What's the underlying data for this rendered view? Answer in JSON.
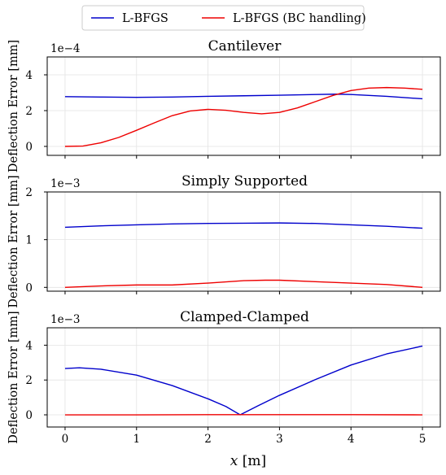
{
  "legend": {
    "items": [
      {
        "label": "L-BFGS",
        "color": "#0000cc"
      },
      {
        "label": "L-BFGS (BC handling)",
        "color": "#ee0000"
      }
    ]
  },
  "xlabel_var": "x",
  "xlabel_unit": " [m]",
  "chart_data": [
    {
      "type": "line",
      "title": "Cantilever",
      "ylabel": "Deflection Error [mm]",
      "offset_label": "1e−4",
      "xlim": [
        -0.25,
        5.25
      ],
      "ylim": [
        -0.5,
        5.0
      ],
      "x_ticks": [
        0,
        1,
        2,
        3,
        4,
        5
      ],
      "y_ticks": [
        0,
        2,
        4
      ],
      "grid": true,
      "series": [
        {
          "name": "L-BFGS",
          "color": "#0000cc",
          "x": [
            0,
            0.5,
            1.0,
            1.5,
            2.0,
            2.5,
            3.0,
            3.5,
            3.8,
            4.0,
            4.5,
            5.0
          ],
          "y": [
            2.78,
            2.76,
            2.74,
            2.76,
            2.8,
            2.83,
            2.86,
            2.9,
            2.92,
            2.9,
            2.8,
            2.66
          ]
        },
        {
          "name": "L-BFGS (BC handling)",
          "color": "#ee0000",
          "x": [
            0,
            0.25,
            0.5,
            0.75,
            1.0,
            1.25,
            1.5,
            1.75,
            2.0,
            2.25,
            2.5,
            2.75,
            3.0,
            3.25,
            3.5,
            3.75,
            4.0,
            4.25,
            4.5,
            4.75,
            5.0
          ],
          "y": [
            0.0,
            0.02,
            0.2,
            0.5,
            0.9,
            1.32,
            1.72,
            1.98,
            2.07,
            2.02,
            1.9,
            1.82,
            1.9,
            2.15,
            2.5,
            2.85,
            3.12,
            3.26,
            3.29,
            3.26,
            3.19
          ]
        }
      ]
    },
    {
      "type": "line",
      "title": "Simply Supported",
      "ylabel": "Deflection Error [mm]",
      "offset_label": "1e−3",
      "xlim": [
        -0.25,
        5.25
      ],
      "ylim": [
        -0.08,
        2.0
      ],
      "x_ticks": [
        0,
        1,
        2,
        3,
        4,
        5
      ],
      "y_ticks": [
        0,
        1,
        2
      ],
      "grid": true,
      "series": [
        {
          "name": "L-BFGS",
          "color": "#0000cc",
          "x": [
            0,
            0.5,
            1.0,
            1.5,
            2.0,
            2.5,
            3.0,
            3.5,
            4.0,
            4.5,
            5.0
          ],
          "y": [
            1.26,
            1.29,
            1.31,
            1.33,
            1.34,
            1.345,
            1.35,
            1.34,
            1.31,
            1.28,
            1.24
          ]
        },
        {
          "name": "L-BFGS (BC handling)",
          "color": "#ee0000",
          "x": [
            0,
            0.5,
            1.0,
            1.5,
            2.0,
            2.5,
            2.8,
            3.0,
            3.5,
            4.0,
            4.5,
            5.0
          ],
          "y": [
            0.0,
            0.03,
            0.05,
            0.05,
            0.09,
            0.14,
            0.15,
            0.15,
            0.12,
            0.09,
            0.06,
            0.0
          ]
        }
      ]
    },
    {
      "type": "line",
      "title": "Clamped-Clamped",
      "ylabel": "Deflection Error [mm]",
      "offset_label": "1e−3",
      "xlim": [
        -0.25,
        5.25
      ],
      "ylim": [
        -0.7,
        5.0
      ],
      "x_ticks": [
        0,
        1,
        2,
        3,
        4,
        5
      ],
      "y_ticks": [
        0,
        2,
        4
      ],
      "grid": true,
      "series": [
        {
          "name": "L-BFGS",
          "color": "#0000cc",
          "x": [
            0,
            0.2,
            0.5,
            1.0,
            1.5,
            2.0,
            2.25,
            2.45,
            2.7,
            3.0,
            3.5,
            4.0,
            4.5,
            5.0
          ],
          "y": [
            2.66,
            2.7,
            2.62,
            2.28,
            1.68,
            0.92,
            0.48,
            0.0,
            0.52,
            1.12,
            2.02,
            2.86,
            3.5,
            3.95
          ]
        },
        {
          "name": "L-BFGS (BC handling)",
          "color": "#ee0000",
          "x": [
            0,
            1.0,
            2.0,
            3.0,
            4.0,
            5.0
          ],
          "y": [
            0.0,
            0.0,
            0.01,
            0.01,
            0.01,
            0.0
          ]
        }
      ]
    }
  ]
}
